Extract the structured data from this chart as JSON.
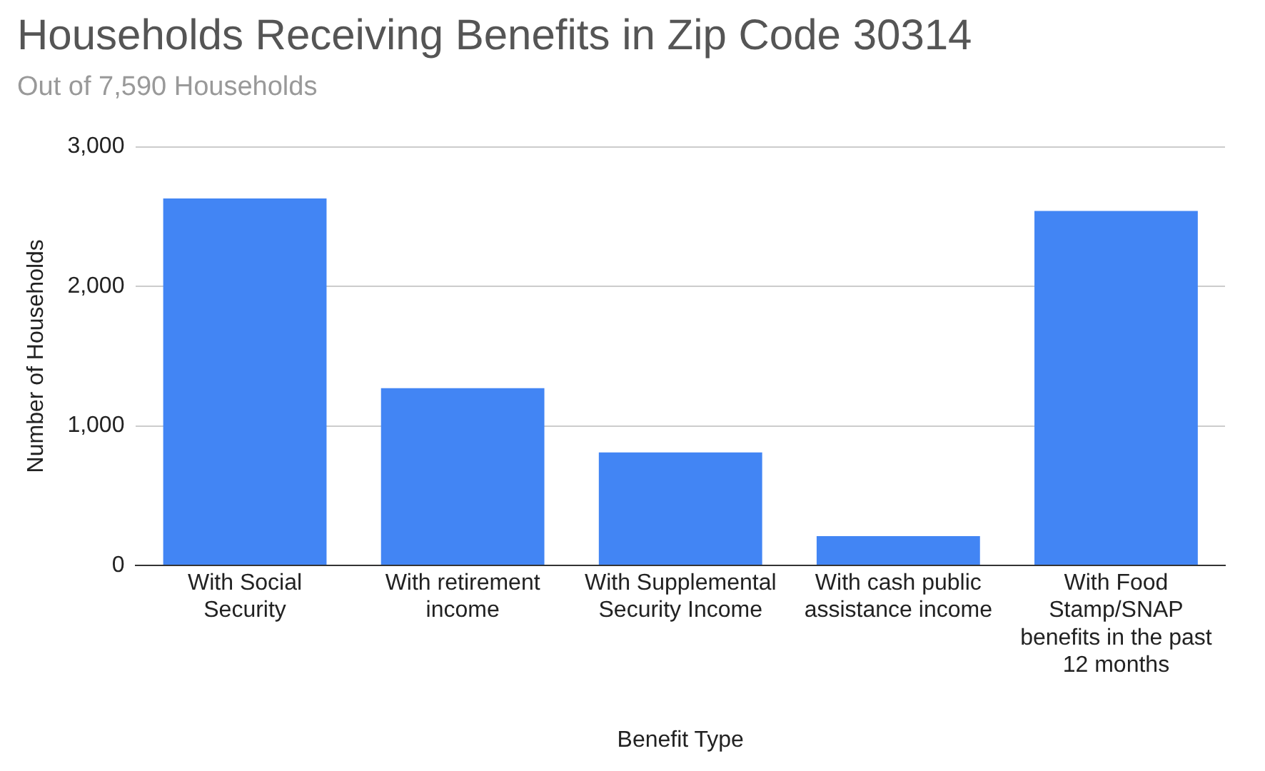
{
  "chart_data": {
    "type": "bar",
    "title": "Households Receiving Benefits in Zip Code 30314",
    "subtitle": "Out of 7,590 Households",
    "xlabel": "Benefit Type",
    "ylabel": "Number of Households",
    "categories": [
      "With Social Security",
      "With retirement income",
      "With Supplemental Security Income",
      "With cash public assistance income",
      "With Food Stamp/SNAP benefits in the past 12 months"
    ],
    "values": [
      2630,
      1270,
      810,
      210,
      2540
    ],
    "color": "#4285f4",
    "ylim": [
      0,
      3000
    ],
    "yticks": [
      {
        "value": 0,
        "label": "0"
      },
      {
        "value": 1000,
        "label": "1,000"
      },
      {
        "value": 2000,
        "label": "2,000"
      },
      {
        "value": 3000,
        "label": "3,000"
      }
    ],
    "grid": "y",
    "legend": false
  }
}
